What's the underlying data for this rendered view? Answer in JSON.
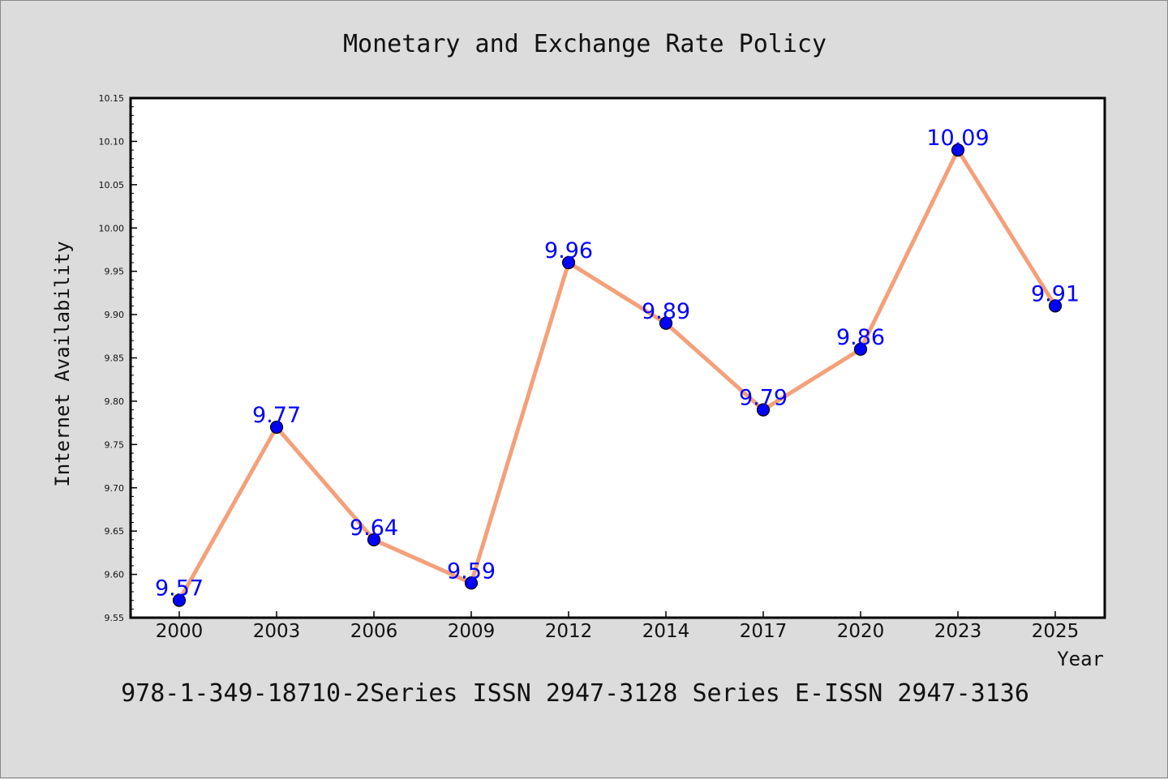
{
  "chart_data": {
    "type": "line",
    "title": "Monetary and Exchange Rate Policy",
    "xlabel": "Year",
    "ylabel": "Internet Availability",
    "caption": "978-1-349-18710-2Series ISSN 2947-3128 Series E-ISSN 2947-3136",
    "categories": [
      "2000",
      "2003",
      "2006",
      "2009",
      "2012",
      "2014",
      "2017",
      "2020",
      "2023",
      "2025"
    ],
    "values": [
      9.57,
      9.77,
      9.64,
      9.59,
      9.96,
      9.89,
      9.79,
      9.86,
      10.09,
      9.91
    ],
    "data_labels": [
      "9.57",
      "9.77",
      "9.64",
      "9.59",
      "9.96",
      "9.89",
      "9.79",
      "9.86",
      "10.09",
      "9.91"
    ],
    "ylim": [
      9.55,
      10.15
    ],
    "yticks": [
      "9.55",
      "9.60",
      "9.65",
      "9.70",
      "9.75",
      "9.80",
      "9.85",
      "9.90",
      "9.95",
      "10.00",
      "10.05",
      "10.10",
      "10.15"
    ],
    "grid": false,
    "line_color": "#f4a07a",
    "marker_color": "#0000ff",
    "label_color": "#0000ff",
    "background_color": "#dcdcdc",
    "plot_background_color": "#ffffff"
  }
}
